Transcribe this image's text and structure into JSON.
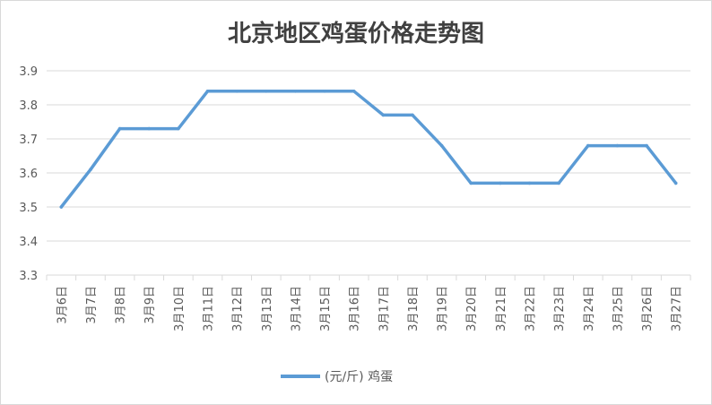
{
  "chart_data": {
    "type": "line",
    "title": "北京地区鸡蛋价格走势图",
    "categories": [
      "3月6日",
      "3月7日",
      "3月8日",
      "3月9日",
      "3月10日",
      "3月11日",
      "3月12日",
      "3月13日",
      "3月14日",
      "3月15日",
      "3月16日",
      "3月17日",
      "3月18日",
      "3月19日",
      "3月20日",
      "3月21日",
      "3月22日",
      "3月23日",
      "3月24日",
      "3月25日",
      "3月26日",
      "3月27日"
    ],
    "series": [
      {
        "name": "(元/斤) 鸡蛋",
        "color": "#5b9bd5",
        "values": [
          3.5,
          3.61,
          3.73,
          3.73,
          3.73,
          3.84,
          3.84,
          3.84,
          3.84,
          3.84,
          3.84,
          3.77,
          3.77,
          3.68,
          3.57,
          3.57,
          3.57,
          3.57,
          3.68,
          3.68,
          3.68,
          3.57
        ]
      }
    ],
    "ylim": [
      3.3,
      3.9
    ],
    "yticks": [
      "3.3",
      "3.4",
      "3.5",
      "3.6",
      "3.7",
      "3.8",
      "3.9"
    ],
    "grid": true,
    "legend": "bottom"
  }
}
